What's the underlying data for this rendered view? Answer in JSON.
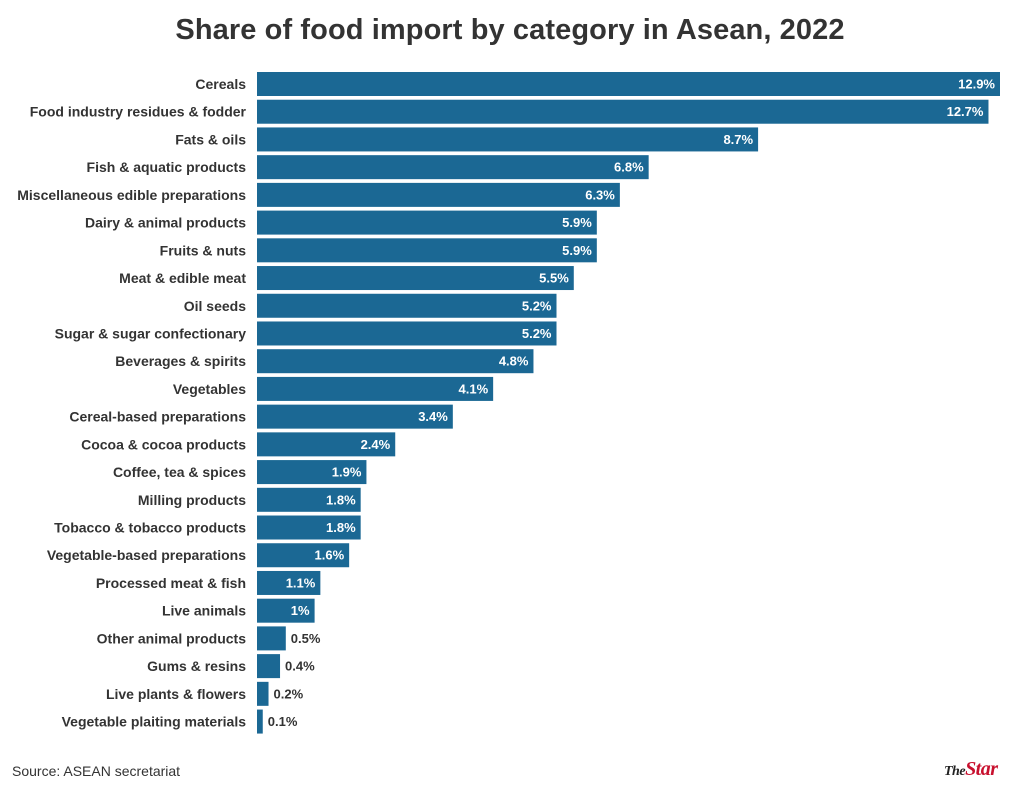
{
  "title": "Share of food import by category in Asean, 2022",
  "source": "Source: ASEAN secretariat",
  "brand": {
    "part1": "The",
    "part2": "Star"
  },
  "colors": {
    "bar": "#1b6894",
    "label_inside": "#ffffff",
    "label_outside": "#333333",
    "brand_accent": "#c8102e"
  },
  "chart_data": {
    "type": "bar",
    "orientation": "horizontal",
    "title": "Share of food import by category in Asean, 2022",
    "xlabel": "",
    "ylabel": "",
    "xlim": [
      0,
      12.9
    ],
    "grid": false,
    "legend": "none",
    "categories": [
      "Cereals",
      "Food industry residues & fodder",
      "Fats & oils",
      "Fish & aquatic products",
      "Miscellaneous edible preparations",
      "Dairy & animal products",
      "Fruits & nuts",
      "Meat & edible meat",
      "Oil seeds",
      "Sugar & sugar confectionary",
      "Beverages & spirits",
      "Vegetables",
      "Cereal-based preparations",
      "Cocoa & cocoa products",
      "Coffee, tea & spices",
      "Milling products",
      "Tobacco & tobacco products",
      "Vegetable-based preparations",
      "Processed meat & fish",
      "Live animals",
      "Other animal products",
      "Gums & resins",
      "Live plants & flowers",
      "Vegetable plaiting materials"
    ],
    "values": [
      12.9,
      12.7,
      8.7,
      6.8,
      6.3,
      5.9,
      5.9,
      5.5,
      5.2,
      5.2,
      4.8,
      4.1,
      3.4,
      2.4,
      1.9,
      1.8,
      1.8,
      1.6,
      1.1,
      1,
      0.5,
      0.4,
      0.2,
      0.1
    ],
    "value_labels": [
      "12.9%",
      "12.7%",
      "8.7%",
      "6.8%",
      "6.3%",
      "5.9%",
      "5.9%",
      "5.5%",
      "5.2%",
      "5.2%",
      "4.8%",
      "4.1%",
      "3.4%",
      "2.4%",
      "1.9%",
      "1.8%",
      "1.8%",
      "1.6%",
      "1.1%",
      "1%",
      "0.5%",
      "0.4%",
      "0.2%",
      "0.1%"
    ]
  }
}
